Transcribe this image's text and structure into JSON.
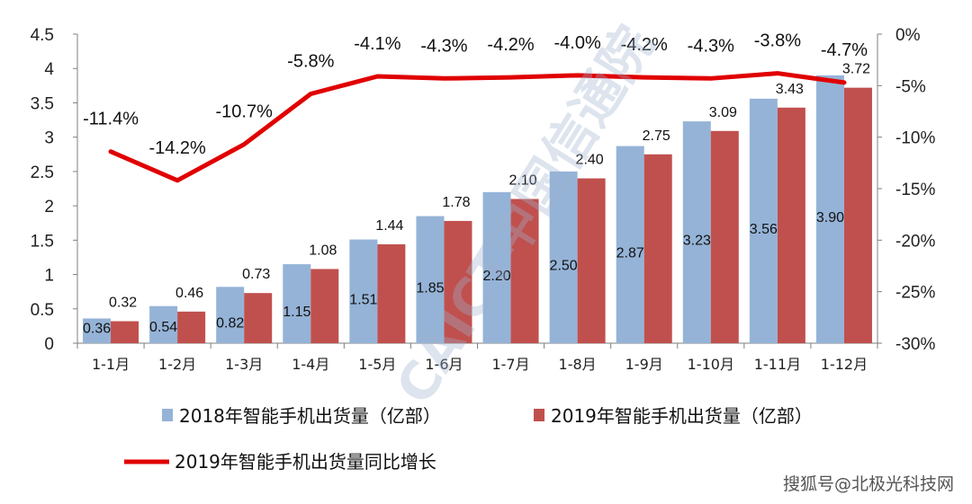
{
  "colors": {
    "series2018": "#95b3d7",
    "series2019": "#c0504d",
    "growth": "#e00000"
  },
  "chart_data": {
    "type": "bar",
    "categories": [
      "1-1月",
      "1-2月",
      "1-3月",
      "1-4月",
      "1-5月",
      "1-6月",
      "1-7月",
      "1-8月",
      "1-9月",
      "1-10月",
      "1-11月",
      "1-12月"
    ],
    "series": [
      {
        "name": "2018年智能手机出货量（亿部）",
        "values": [
          0.36,
          0.54,
          0.82,
          1.15,
          1.51,
          1.85,
          2.2,
          2.5,
          2.87,
          3.23,
          3.56,
          3.9
        ],
        "labels": [
          "0.36",
          "0.54",
          "0.82",
          "1.15",
          "1.51",
          "1.85",
          "2.20",
          "2.50",
          "2.87",
          "3.23",
          "3.56",
          "3.90"
        ]
      },
      {
        "name": "2019年智能手机出货量（亿部）",
        "values": [
          0.32,
          0.46,
          0.73,
          1.08,
          1.44,
          1.78,
          2.1,
          2.4,
          2.75,
          3.09,
          3.43,
          3.72
        ],
        "labels": [
          "0.32",
          "0.46",
          "0.73",
          "1.08",
          "1.44",
          "1.78",
          "2.10",
          "2.40",
          "2.75",
          "3.09",
          "3.43",
          "3.72"
        ]
      }
    ],
    "line_series": {
      "name": "2019年智能手机出货量同比增长",
      "type": "line",
      "axis": "right",
      "values": [
        -11.4,
        -14.2,
        -10.7,
        -5.8,
        -4.1,
        -4.3,
        -4.2,
        -4.0,
        -4.2,
        -4.3,
        -3.8,
        -4.7
      ],
      "labels": [
        "-11.4%",
        "-14.2%",
        "-10.7%",
        "-5.8%",
        "-4.1%",
        "-4.3%",
        "-4.2%",
        "-4.0%",
        "-4.2%",
        "-4.3%",
        "-3.8%",
        "-4.7%"
      ]
    },
    "left_axis": {
      "ylim": [
        0,
        4.5
      ],
      "ticks": [
        "0",
        "0.5",
        "1",
        "1.5",
        "2",
        "2.5",
        "3",
        "3.5",
        "4",
        "4.5"
      ]
    },
    "right_axis": {
      "ylim": [
        -30,
        0
      ],
      "ticks": [
        "-30%",
        "-25%",
        "-20%",
        "-15%",
        "-10%",
        "-5%",
        "0%"
      ]
    },
    "legend_position": "bottom",
    "watermark": "CAICT中国信通院"
  },
  "footer": {
    "source": "搜狐号@北极光科技网"
  }
}
